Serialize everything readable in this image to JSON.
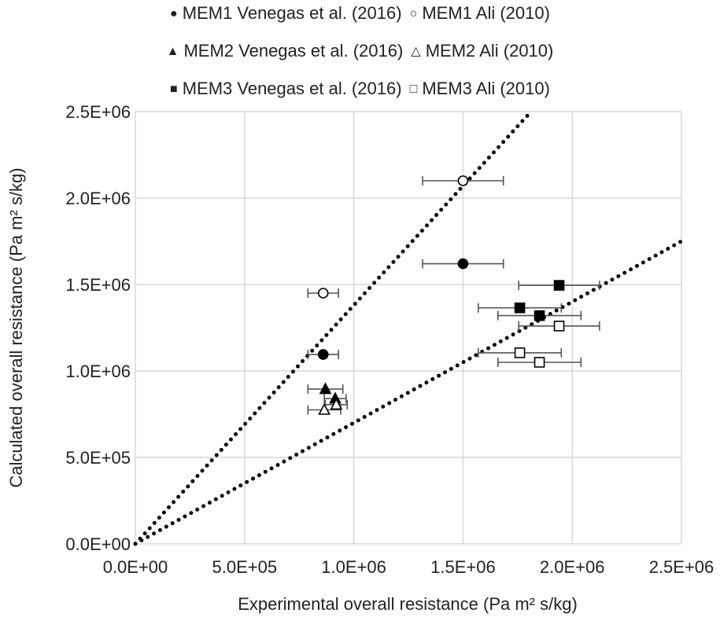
{
  "chart_data": {
    "type": "scatter",
    "xlabel": "Experimental overall resistance (Pa m² s/kg)",
    "ylabel": "Calculated overall resistance (Pa m² s/kg)",
    "xlim": [
      0,
      2500000
    ],
    "ylim": [
      0,
      2500000
    ],
    "x_ticks": [
      "0.0E+00",
      "5.0E+05",
      "1.0E+06",
      "1.5E+06",
      "2.0E+06",
      "2.5E+06"
    ],
    "y_ticks": [
      "0.0E+00",
      "5.0E+05",
      "1.0E+06",
      "1.5E+06",
      "2.0E+06",
      "2.5E+06"
    ],
    "grid": true,
    "legend_position": "top",
    "series": [
      {
        "name": "MEM1 Venegas et al. (2016)",
        "marker": "circle",
        "filled": true,
        "points": [
          {
            "x": 860000,
            "y": 1095000,
            "xerr": 70000
          },
          {
            "x": 1500000,
            "y": 1620000,
            "xerr": 185000
          }
        ]
      },
      {
        "name": "MEM1 Ali (2010)",
        "marker": "circle",
        "filled": false,
        "points": [
          {
            "x": 860000,
            "y": 1450000,
            "xerr": 70000
          },
          {
            "x": 1500000,
            "y": 2100000,
            "xerr": 185000
          }
        ]
      },
      {
        "name": "MEM2 Venegas et al. (2016)",
        "marker": "triangle",
        "filled": true,
        "points": [
          {
            "x": 870000,
            "y": 895000,
            "xerr": 80000
          },
          {
            "x": 915000,
            "y": 840000,
            "xerr": 50000
          }
        ]
      },
      {
        "name": "MEM2 Ali (2010)",
        "marker": "triangle",
        "filled": false,
        "points": [
          {
            "x": 865000,
            "y": 775000,
            "xerr": 75000
          },
          {
            "x": 920000,
            "y": 805000,
            "xerr": 50000
          }
        ]
      },
      {
        "name": "MEM3 Venegas et al. (2016)",
        "marker": "square",
        "filled": true,
        "points": [
          {
            "x": 1760000,
            "y": 1365000,
            "xerr": 190000
          },
          {
            "x": 1850000,
            "y": 1320000,
            "xerr": 190000
          },
          {
            "x": 1940000,
            "y": 1495000,
            "xerr": 185000
          }
        ]
      },
      {
        "name": "MEM3 Ali (2010)",
        "marker": "square",
        "filled": false,
        "points": [
          {
            "x": 1760000,
            "y": 1105000,
            "xerr": 190000
          },
          {
            "x": 1850000,
            "y": 1050000,
            "xerr": 190000
          },
          {
            "x": 1940000,
            "y": 1260000,
            "xerr": 185000
          }
        ]
      }
    ],
    "reference_lines": [
      {
        "style": "dotted",
        "slope": 1.38
      },
      {
        "style": "dotted",
        "slope": 0.7
      }
    ],
    "colors": {
      "marker": "#000000",
      "errorbar": "#555555",
      "grid": "#d9d9d9",
      "refline": "#000000"
    }
  }
}
